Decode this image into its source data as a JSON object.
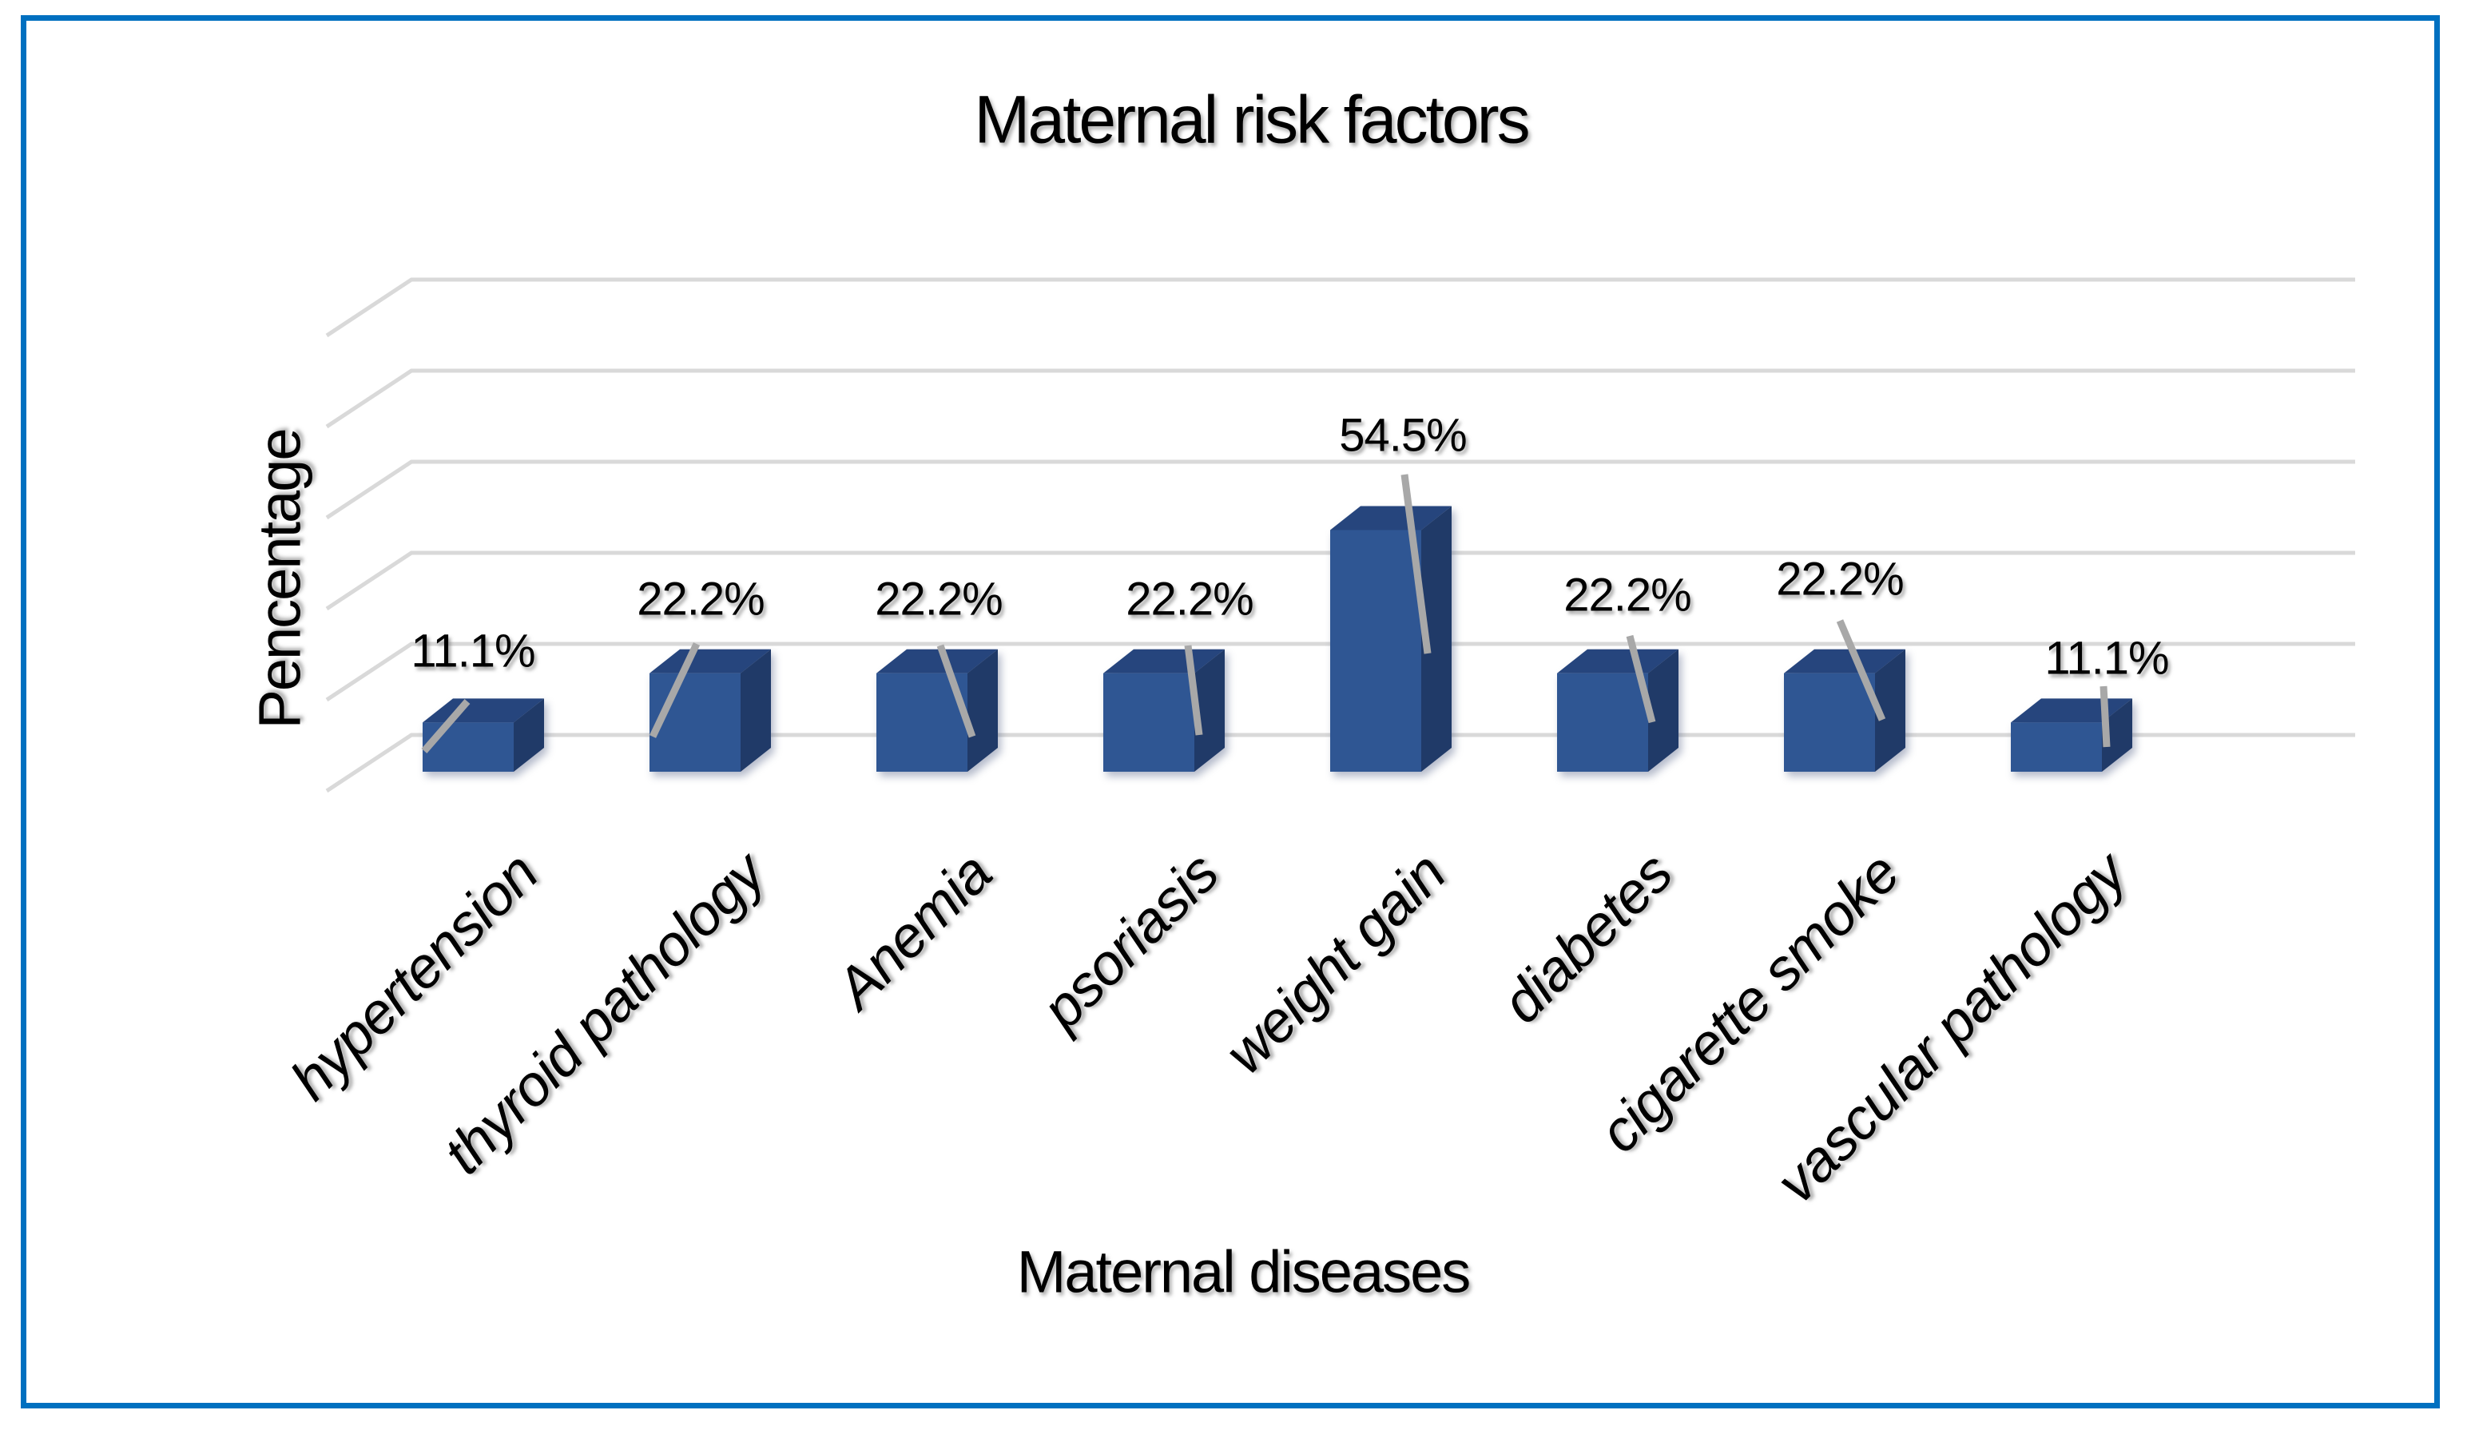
{
  "figure": {
    "border_color": "#0070C0",
    "background_color": "#FFFFFF"
  },
  "chart_data": {
    "type": "bar",
    "variant": "3d-column",
    "title": "Maternal risk factors",
    "xlabel": "Maternal diseases",
    "ylabel": "Pencentage",
    "categories": [
      "hypertension",
      "thyroid pathology",
      "Anemia",
      "psoriasis",
      "weight gain",
      "diabetes",
      "cigarette smoke",
      "vascular pathology"
    ],
    "values": [
      11.1,
      22.2,
      22.2,
      22.2,
      54.5,
      22.2,
      22.2,
      11.1
    ],
    "labels": [
      "11.1%",
      "22.2%",
      "22.2%",
      "22.2%",
      "54.5%",
      "22.2%",
      "22.2%",
      "11.1%"
    ],
    "unit": "percent",
    "ylim": [
      0,
      60
    ],
    "gridline_count": 6,
    "grid_on": true,
    "legend_position": "none",
    "axis_tick_labels": "none",
    "bar_front_color": "#2F5693",
    "bar_top_color": "#26457D",
    "bar_side_color": "#203A68",
    "leader_line_color": "#A8A8A8",
    "gridline_color": "#D9D9D9",
    "text_color": "#000000"
  }
}
